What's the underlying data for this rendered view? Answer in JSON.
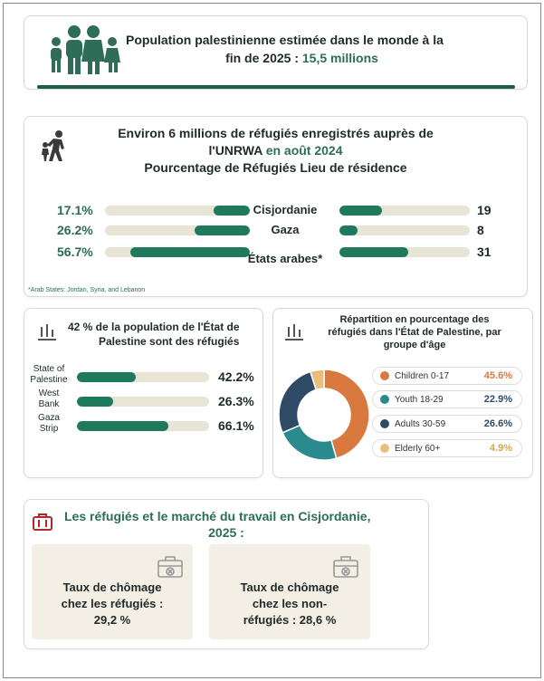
{
  "header": {
    "line1": "Population palestinienne estimée dans le monde à la",
    "line2_prefix": "fin de 2025 : ",
    "line2_value": "15,5 millions",
    "icon": "family-icon"
  },
  "refugees": {
    "title_line1": "Environ 6 millions de réfugiés enregistrés auprès de",
    "title_line2_prefix": "l'UNRWA ",
    "title_line2_highlight": "en août 2024",
    "subtitle": "Pourcentage de Réfugiés Lieu de résidence",
    "icon": "refugee-walking-icon",
    "footnote": "*Arab States: Jordan, Syria, and Lebanon",
    "rows": [
      {
        "location": "Cisjordanie",
        "percent_label": "17.1%",
        "percent": 17.1,
        "camps": 19,
        "camps_label": "19"
      },
      {
        "location": "Gaza",
        "percent_label": "26.2%",
        "percent": 26.2,
        "camps": 8,
        "camps_label": "8"
      },
      {
        "location": "États arabes*",
        "percent_label": "56.7%",
        "percent": 56.7,
        "camps": 31,
        "camps_label": "31"
      }
    ]
  },
  "share_panel": {
    "title_line1": "42 % de la population de l'État de",
    "title_line2": "Palestine sont des réfugiés",
    "icon": "bar-chart-icon"
  },
  "age_panel": {
    "title_line1": "Répartition en pourcentage des",
    "title_line2": "réfugiés dans l'État de Palestine, par",
    "title_line3": "groupe d'âge",
    "icon": "bar-chart-icon"
  },
  "labour": {
    "title_line1": "Les réfugiés et le marché du travail en Cisjordanie,",
    "title_line2": "2025 :",
    "icon": "briefcase-icon",
    "tiles": [
      {
        "line1": "Taux de chômage",
        "line2": "chez les réfugiés :",
        "line3": "29,2 %",
        "icon": "briefcase-x-icon"
      },
      {
        "line1": "Taux de chômage",
        "line2": "chez les non-",
        "line3": "réfugiés : 28,6 %",
        "icon": "briefcase-x-icon"
      }
    ]
  },
  "colors": {
    "accent": "#1f7a5c",
    "track": "#e8e4d6",
    "children": "#d9783f",
    "youth": "#2a8a8e",
    "adults": "#2f4a66",
    "elderly": "#e9bd7a"
  },
  "chart_data": [
    {
      "type": "bar",
      "categories": [
        "Cisjordanie",
        "Gaza",
        "États arabes*"
      ],
      "series": [
        {
          "name": "Pourcentage de Réfugiés",
          "values": [
            17.1,
            26.2,
            56.7
          ]
        },
        {
          "values": [
            19,
            8,
            31
          ]
        }
      ],
      "title": "Pourcentage de Réfugiés Lieu de résidence"
    },
    {
      "type": "bar",
      "categories": [
        "State of Palestine",
        "West Bank",
        "Gaza Strip"
      ],
      "category_lines": [
        [
          "State of",
          "Palestine"
        ],
        [
          "West",
          "Bank"
        ],
        [
          "Gaza",
          "Strip"
        ]
      ],
      "values": [
        42.2,
        26.3,
        66.1
      ],
      "value_labels": [
        "42.2%",
        "26.3%",
        "66.1%"
      ],
      "ylim": [
        0,
        100
      ]
    },
    {
      "type": "pie",
      "categories": [
        "Children 0-17",
        "Youth 18-29",
        "Adults 30-59",
        "Elderly 60+"
      ],
      "values": [
        45.6,
        22.9,
        26.6,
        4.9
      ],
      "value_labels": [
        "45.6%",
        "22.9%",
        "26.6%",
        "4.9%"
      ],
      "colors": [
        "#d9783f",
        "#2a8a8e",
        "#2f4a66",
        "#e9bd7a"
      ],
      "donut": true
    }
  ]
}
